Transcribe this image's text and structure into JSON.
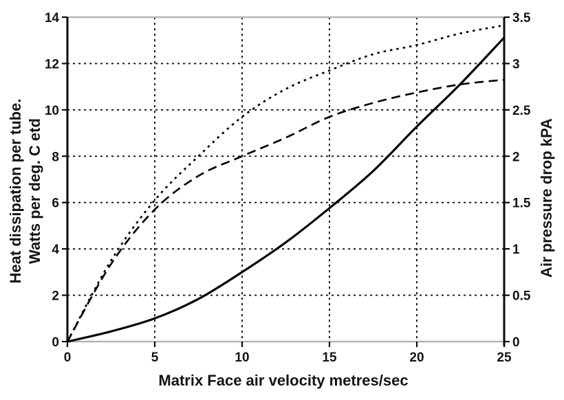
{
  "chart_data": {
    "type": "line",
    "xlabel": "Matrix Face air velocity metres/sec",
    "ylabel_left_line1": "Heat dissipation per tube.",
    "ylabel_left_line2": "Watts per deg. C etd",
    "ylabel_right": "Air pressure drop kPA",
    "x_range": [
      0,
      25
    ],
    "y_left_range": [
      0,
      14
    ],
    "y_right_range": [
      0,
      3.5
    ],
    "x_ticks": [
      "0",
      "5",
      "10",
      "15",
      "20",
      "25"
    ],
    "y_left_ticks": [
      "0",
      "2",
      "4",
      "6",
      "8",
      "10",
      "12",
      "14"
    ],
    "y_right_ticks": [
      "0",
      "0.5",
      "1",
      "1.5",
      "2",
      "2.5",
      "3",
      "3.5"
    ],
    "grid": {
      "x_lines": [
        5,
        10,
        15,
        20
      ],
      "y_lines_left": [
        2,
        4,
        6,
        8,
        10,
        12
      ]
    },
    "colors": {
      "line": "#000000",
      "background": "#ffffff",
      "border_gray": "#b4b4b4"
    },
    "legend": "none",
    "series": [
      {
        "name": "heat-dissipation-dotted",
        "style": "dotted",
        "axis": "left",
        "x": [
          0,
          2.5,
          5,
          7.5,
          10,
          12.5,
          15,
          17.5,
          20,
          22.5,
          25
        ],
        "y": [
          0,
          3.5,
          6.1,
          8.0,
          9.7,
          10.9,
          11.7,
          12.4,
          12.8,
          13.3,
          13.65
        ]
      },
      {
        "name": "heat-dissipation-dashed",
        "style": "dashed",
        "axis": "left",
        "x": [
          0,
          2.5,
          5,
          7.5,
          10,
          12.5,
          15,
          17.5,
          20,
          22.5,
          25
        ],
        "y": [
          0,
          3.35,
          5.7,
          7.15,
          8.0,
          8.8,
          9.7,
          10.3,
          10.75,
          11.1,
          11.3
        ]
      },
      {
        "name": "air-pressure-drop-solid",
        "style": "solid",
        "axis": "right",
        "x": [
          0,
          2.5,
          5,
          7.5,
          10,
          12.5,
          15,
          17.5,
          20,
          22.5,
          25
        ],
        "y": [
          0,
          0.11,
          0.25,
          0.46,
          0.75,
          1.07,
          1.44,
          1.84,
          2.32,
          2.78,
          3.28
        ]
      }
    ]
  }
}
